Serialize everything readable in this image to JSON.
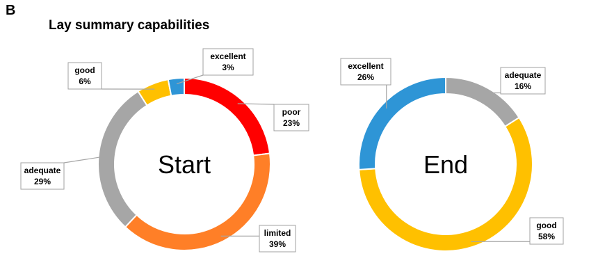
{
  "panel_letter": "B",
  "chart_data": [
    {
      "type": "pie",
      "title": "Lay summary capabilities",
      "center_label": "Start",
      "slices": [
        {
          "label": "poor",
          "value": 23,
          "display": "23%",
          "color": "#ff0000"
        },
        {
          "label": "limited",
          "value": 39,
          "display": "39%",
          "color": "#ff7f27"
        },
        {
          "label": "adequate",
          "value": 29,
          "display": "29%",
          "color": "#a6a6a6"
        },
        {
          "label": "good",
          "value": 6,
          "display": "6%",
          "color": "#ffc000"
        },
        {
          "label": "excellent",
          "value": 3,
          "display": "3%",
          "color": "#2e95d6"
        }
      ]
    },
    {
      "type": "pie",
      "center_label": "End",
      "slices": [
        {
          "label": "adequate",
          "value": 16,
          "display": "16%",
          "color": "#a6a6a6"
        },
        {
          "label": "good",
          "value": 58,
          "display": "58%",
          "color": "#ffc000"
        },
        {
          "label": "excellent",
          "value": 26,
          "display": "26%",
          "color": "#2e95d6"
        }
      ]
    }
  ]
}
